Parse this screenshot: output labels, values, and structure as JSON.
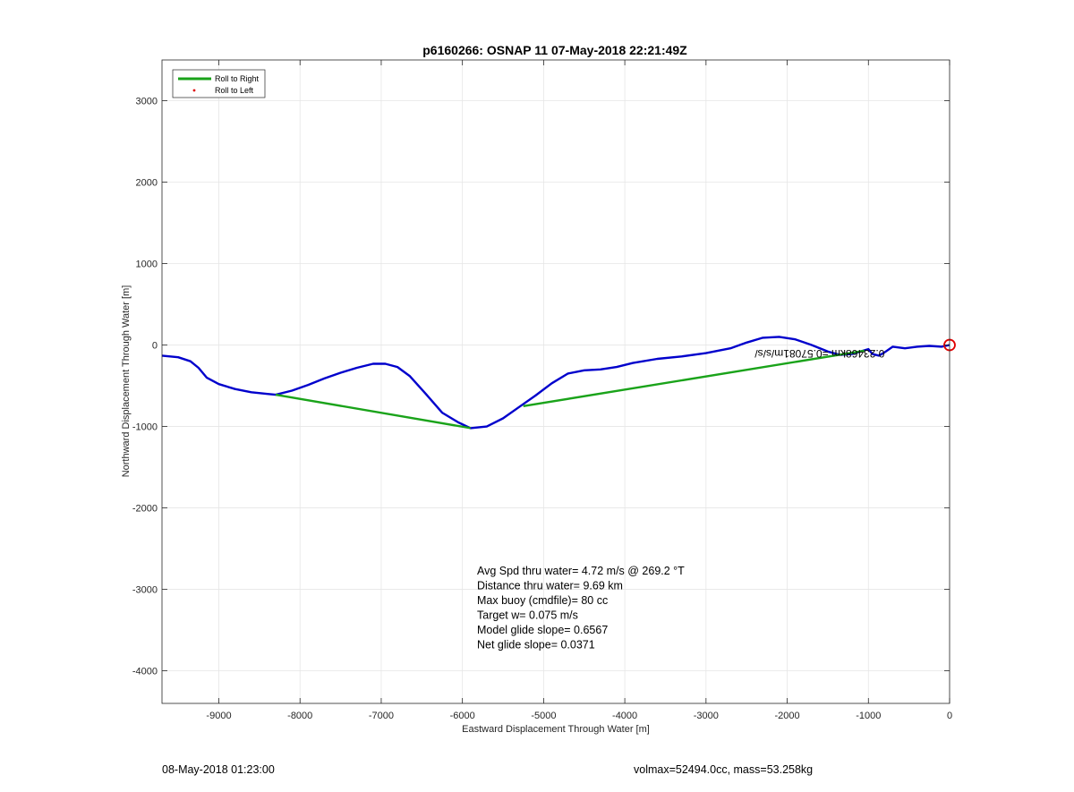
{
  "chart_data": {
    "type": "line",
    "title": "p6160266: OSNAP 11 07-May-2018 22:21:49Z",
    "xlabel": "Eastward Displacement Through Water [m]",
    "ylabel": "Northward Displacement Through Water [m]",
    "xlim": [
      -9700,
      0
    ],
    "ylim": [
      -4400,
      3500
    ],
    "xticks": [
      -9000,
      -8000,
      -7000,
      -6000,
      -5000,
      -4000,
      -3000,
      -2000,
      -1000,
      0
    ],
    "yticks": [
      -4000,
      -3000,
      -2000,
      -1000,
      0,
      1000,
      2000,
      3000
    ],
    "grid": true,
    "legend": {
      "placement": "top-left",
      "entries": [
        {
          "label": "Roll to Right",
          "color": "#1aa31a",
          "style": "line"
        },
        {
          "label": "Roll to Left",
          "color": "#e00000",
          "style": "dot"
        }
      ]
    },
    "series": [
      {
        "color": "#0000cc",
        "points": [
          [
            -9700,
            -130
          ],
          [
            -9500,
            -150
          ],
          [
            -9350,
            -200
          ],
          [
            -9250,
            -280
          ],
          [
            -9150,
            -400
          ],
          [
            -9000,
            -480
          ],
          [
            -8800,
            -540
          ],
          [
            -8600,
            -580
          ],
          [
            -8400,
            -600
          ],
          [
            -8300,
            -610
          ],
          [
            -8100,
            -560
          ],
          [
            -7900,
            -490
          ],
          [
            -7700,
            -410
          ],
          [
            -7500,
            -340
          ],
          [
            -7300,
            -280
          ],
          [
            -7100,
            -230
          ],
          [
            -6950,
            -230
          ],
          [
            -6800,
            -270
          ],
          [
            -6650,
            -380
          ],
          [
            -6450,
            -600
          ],
          [
            -6250,
            -830
          ],
          [
            -6050,
            -950
          ],
          [
            -5900,
            -1020
          ],
          [
            -5700,
            -1000
          ],
          [
            -5500,
            -900
          ],
          [
            -5300,
            -760
          ],
          [
            -5100,
            -620
          ],
          [
            -4900,
            -470
          ],
          [
            -4700,
            -350
          ],
          [
            -4500,
            -310
          ],
          [
            -4300,
            -300
          ],
          [
            -4100,
            -270
          ],
          [
            -3900,
            -220
          ],
          [
            -3600,
            -170
          ],
          [
            -3300,
            -140
          ],
          [
            -3000,
            -100
          ],
          [
            -2700,
            -40
          ],
          [
            -2500,
            30
          ],
          [
            -2300,
            90
          ],
          [
            -2100,
            100
          ],
          [
            -1900,
            70
          ],
          [
            -1700,
            0
          ],
          [
            -1500,
            -80
          ],
          [
            -1350,
            -120
          ],
          [
            -1200,
            -110
          ],
          [
            -1100,
            -80
          ],
          [
            -1000,
            -50
          ],
          [
            -950,
            -110
          ],
          [
            -870,
            -130
          ],
          [
            -800,
            -90
          ],
          [
            -700,
            -20
          ],
          [
            -550,
            -40
          ],
          [
            -400,
            -20
          ],
          [
            -250,
            -10
          ],
          [
            -100,
            -20
          ],
          [
            0,
            0
          ]
        ]
      },
      {
        "name": "Roll to Right",
        "color": "#1aa31a",
        "segments": [
          [
            [
              -8300,
              -610
            ],
            [
              -5900,
              -1020
            ]
          ],
          [
            [
              -5250,
              -750
            ],
            [
              -1050,
              -70
            ]
          ]
        ]
      }
    ],
    "markers": [
      {
        "label": "endpoint",
        "x": 0,
        "y": 0,
        "color": "#e00000",
        "shape": "circle"
      }
    ],
    "overlapping_text": {
      "text": "0.23468km =0.57081m/s/s/",
      "x": -2400,
      "y": -60
    },
    "stats_lines": [
      "Avg Spd thru water=  4.72 m/s @ 269.2 °T",
      "Distance thru water=  9.69 km",
      "Max buoy (cmdfile)= 80 cc",
      "Target w= 0.075 m/s",
      "Model glide slope= 0.6567",
      "Net glide slope= 0.0371"
    ]
  },
  "footer": {
    "left": "08-May-2018 01:23:00",
    "right": "volmax=52494.0cc, mass=53.258kg"
  }
}
